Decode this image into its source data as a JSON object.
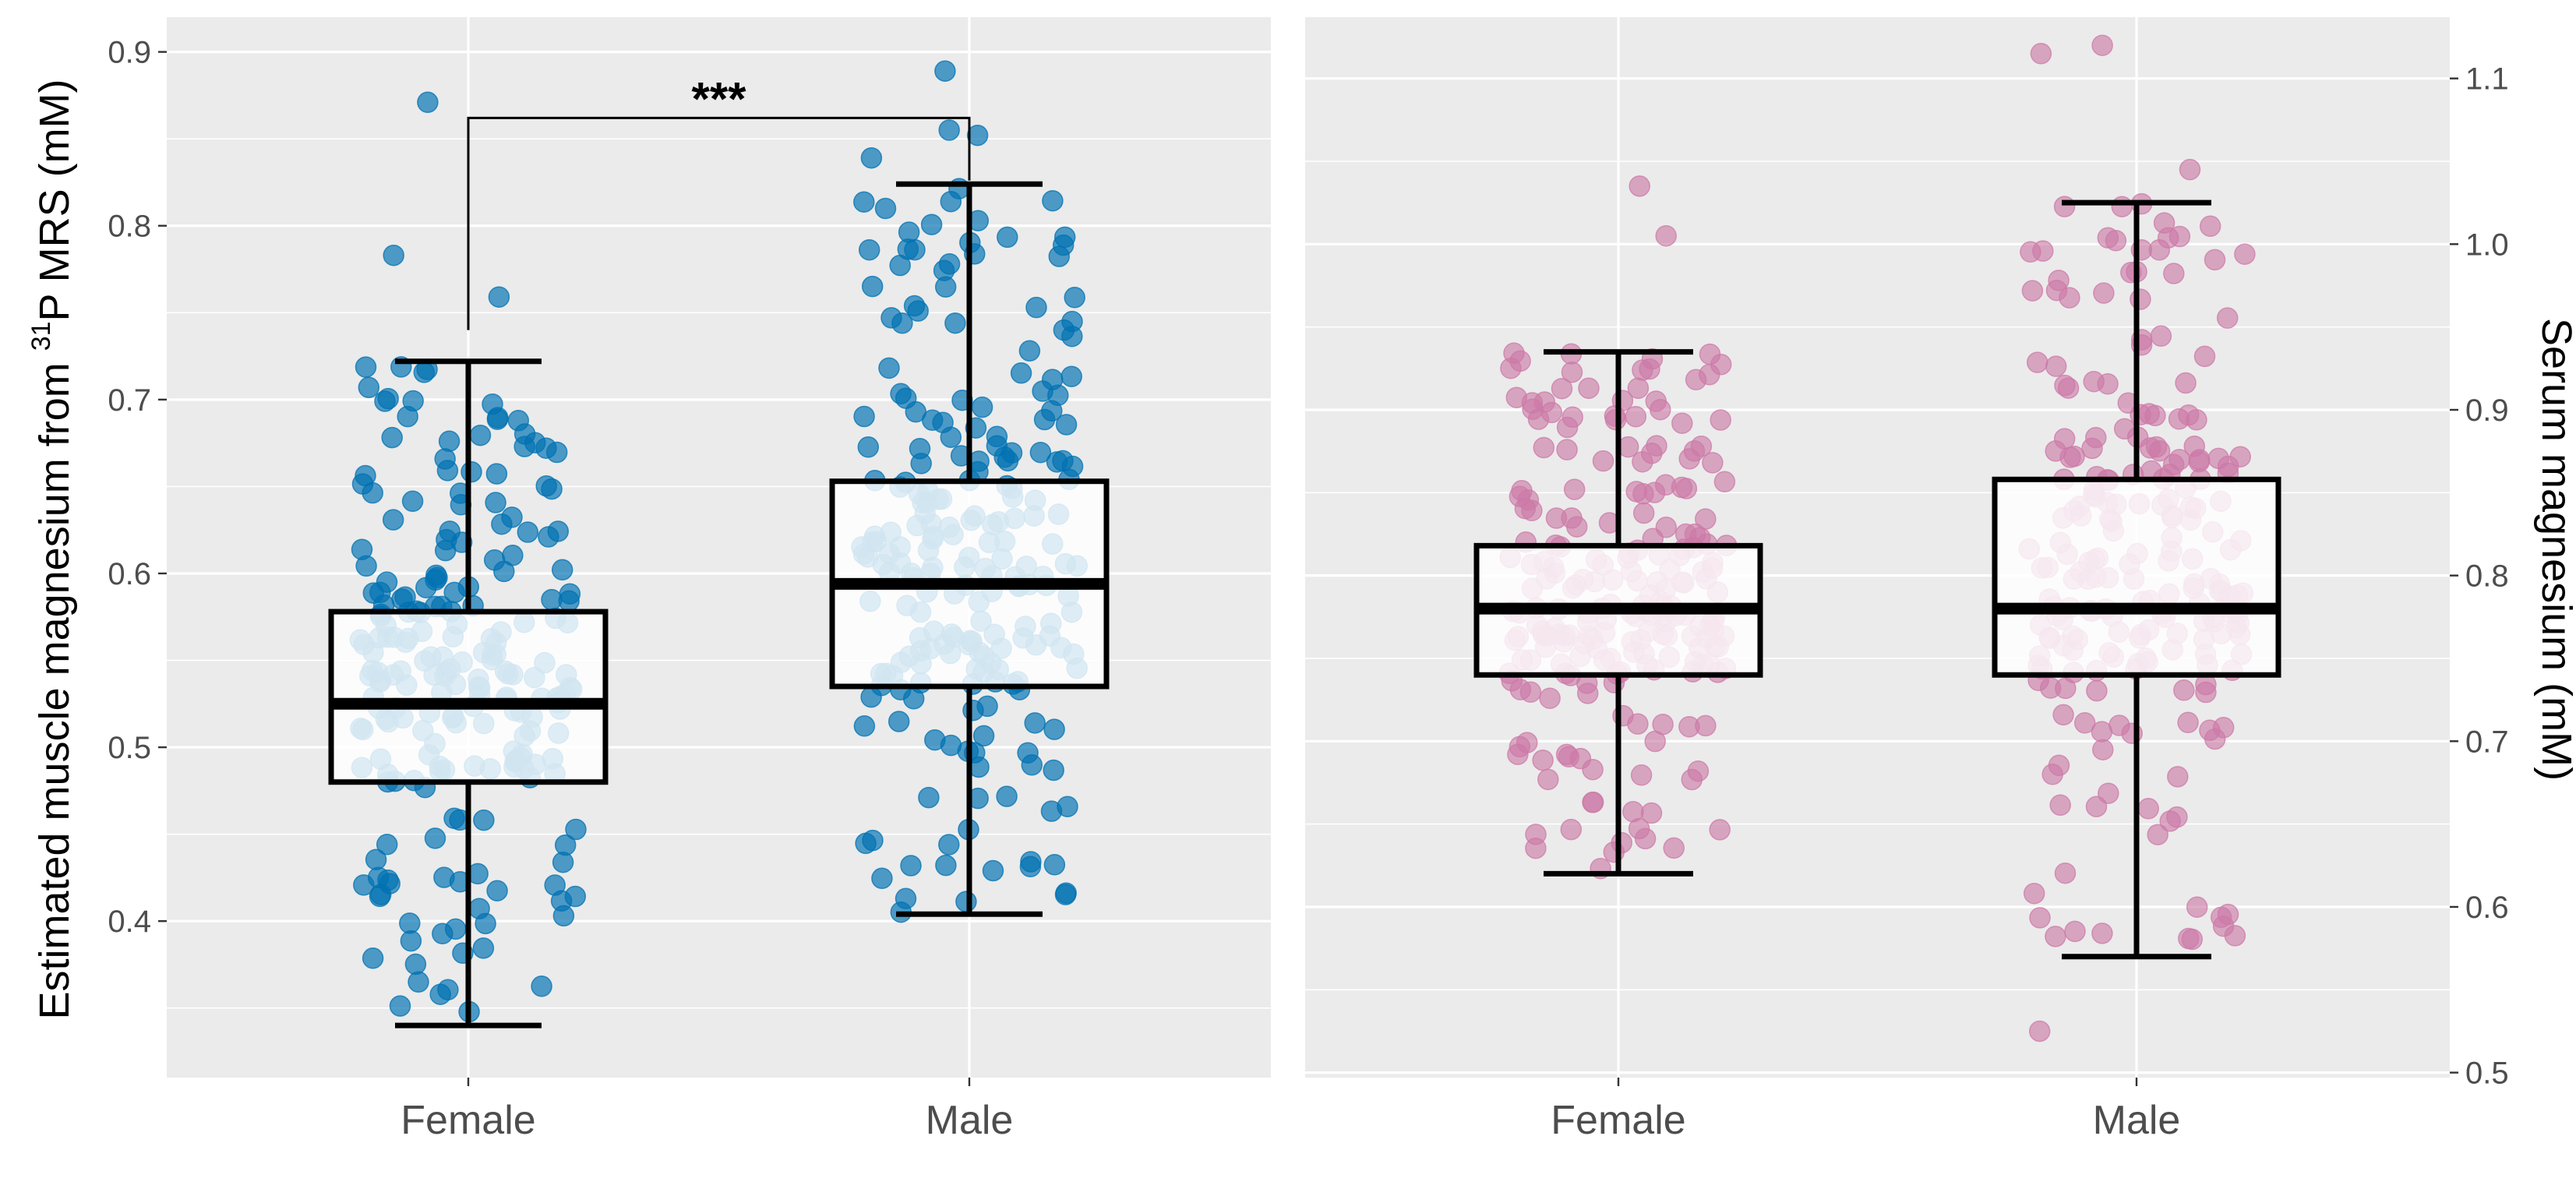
{
  "colors": {
    "panel_bg": "#ebebeb",
    "left_points": "#0072b2",
    "right_points": "#cc79a7",
    "box_fill": "#ffffff",
    "box_stroke": "#000000"
  },
  "chart_data": [
    {
      "type": "box",
      "panel": "left",
      "ylabel_pre": "Estimated muscle magnesium from ",
      "ylabel_sup": "31",
      "ylabel_post": "P MRS (mM)",
      "y_axis_side": "left",
      "ylim": [
        0.31,
        0.92
      ],
      "y_ticks": [
        0.4,
        0.5,
        0.6,
        0.7,
        0.8,
        0.9
      ],
      "y_tick_labels": [
        "0.4",
        "0.5",
        "0.6",
        "0.7",
        "0.8",
        "0.9"
      ],
      "categories": [
        "Female",
        "Male"
      ],
      "point_color": "#0072b2",
      "boxes": [
        {
          "category": "Female",
          "whisker_low": 0.34,
          "q1": 0.48,
          "median": 0.525,
          "q3": 0.578,
          "whisker_high": 0.722,
          "n_points": 220,
          "outliers": [
            0.871,
            0.783,
            0.759
          ],
          "seed": 11
        },
        {
          "category": "Male",
          "whisker_low": 0.404,
          "q1": 0.535,
          "median": 0.594,
          "q3": 0.653,
          "whisker_high": 0.824,
          "n_points": 220,
          "outliers": [
            0.889,
            0.855,
            0.852,
            0.839
          ],
          "seed": 23
        }
      ],
      "significance": {
        "label": "***",
        "between": [
          "Female",
          "Male"
        ],
        "bracket_y": 0.862,
        "left_leg_low": 0.74,
        "right_leg_low": 0.826
      }
    },
    {
      "type": "box",
      "panel": "right",
      "ylabel": "Serum magnesium (mM)",
      "y_axis_side": "right",
      "ylim": [
        0.497,
        1.137
      ],
      "y_ticks": [
        0.5,
        0.6,
        0.7,
        0.8,
        0.9,
        1.0,
        1.1
      ],
      "y_tick_labels": [
        "0.5",
        "0.6",
        "0.7",
        "0.8",
        "0.9",
        "1.0",
        "1.1"
      ],
      "categories": [
        "Female",
        "Male"
      ],
      "point_color": "#cc79a7",
      "boxes": [
        {
          "category": "Female",
          "whisker_low": 0.62,
          "q1": 0.74,
          "median": 0.78,
          "q3": 0.818,
          "whisker_high": 0.935,
          "n_points": 220,
          "outliers": [
            1.035,
            1.005
          ],
          "seed": 37
        },
        {
          "category": "Male",
          "whisker_low": 0.57,
          "q1": 0.74,
          "median": 0.78,
          "q3": 0.858,
          "whisker_high": 1.025,
          "n_points": 220,
          "outliers": [
            1.12,
            1.115,
            1.045,
            0.525
          ],
          "seed": 53
        }
      ]
    }
  ]
}
